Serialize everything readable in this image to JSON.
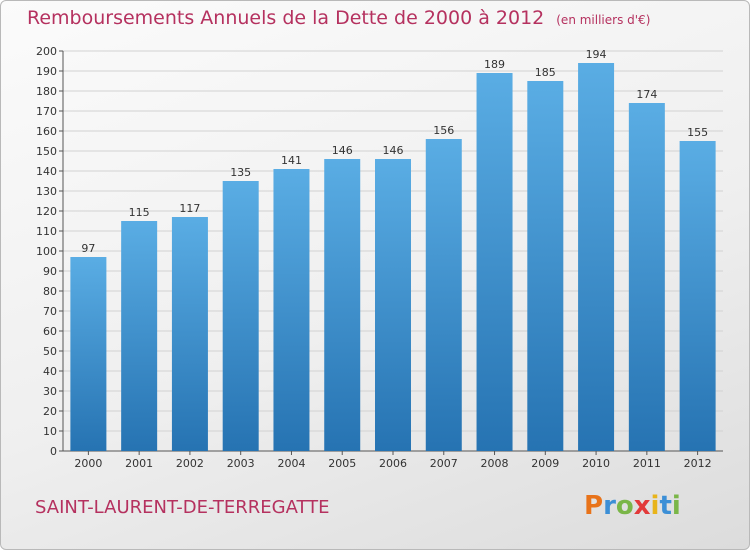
{
  "title": "Remboursements Annuels de la Dette de 2000 à 2012",
  "unit": "(en milliers d'€)",
  "commune": "SAINT-LAURENT-DE-TERREGATTE",
  "logo": {
    "letters": [
      "P",
      "r",
      "o",
      "x",
      "i",
      "t",
      "i"
    ],
    "colors": [
      "#e8731a",
      "#3c8fd6",
      "#7ab648",
      "#e23a3a",
      "#e8b41a",
      "#3c8fd6",
      "#7ab648"
    ]
  },
  "colors": {
    "bar_top": "#5aade4",
    "bar_bottom": "#2673b2",
    "text": "#333333",
    "title": "#b5315f"
  },
  "chart_data": {
    "type": "bar",
    "categories": [
      "2000",
      "2001",
      "2002",
      "2003",
      "2004",
      "2005",
      "2006",
      "2007",
      "2008",
      "2009",
      "2010",
      "2011",
      "2012"
    ],
    "values": [
      97,
      115,
      117,
      135,
      141,
      146,
      146,
      156,
      189,
      185,
      194,
      174,
      155
    ],
    "data_labels": [
      "97",
      "115",
      "117",
      "135",
      "141",
      "146",
      "146",
      "156",
      "189",
      "185",
      "194",
      "174",
      "155"
    ],
    "title": "Remboursements Annuels de la Dette de 2000 à 2012",
    "unit_note": "(en milliers d'€)",
    "ylim": [
      0,
      200
    ],
    "yticks": [
      0,
      10,
      20,
      30,
      40,
      50,
      60,
      70,
      80,
      90,
      100,
      110,
      120,
      130,
      140,
      150,
      160,
      170,
      180,
      190,
      200
    ],
    "grid": true,
    "legend": "none"
  }
}
